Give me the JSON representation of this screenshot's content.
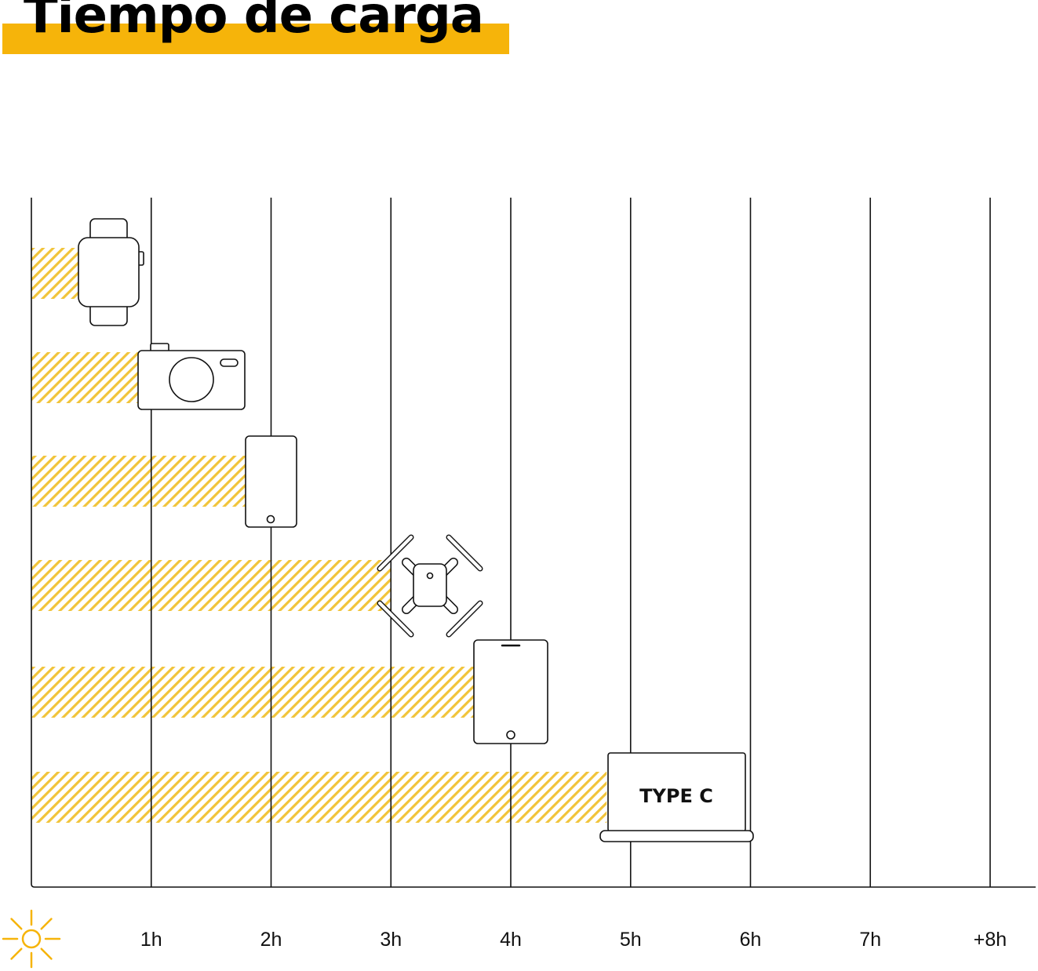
{
  "title": "Tiempo de carga",
  "colors": {
    "accent": "#F6B40A",
    "hatch": "#F1C43A",
    "line": "#111111"
  },
  "chart_data": {
    "type": "bar",
    "orientation": "horizontal",
    "categories": [
      "smartwatch",
      "camera",
      "smartphone",
      "drone",
      "tablet",
      "laptop"
    ],
    "category_icons": [
      "smartwatch-icon",
      "camera-icon",
      "smartphone-icon",
      "drone-icon",
      "tablet-icon",
      "laptop-icon"
    ],
    "values": [
      0.4,
      0.9,
      1.8,
      3.0,
      3.7,
      4.8
    ],
    "value_unit": "hours",
    "x_ticks": [
      "1h",
      "2h",
      "3h",
      "4h",
      "5h",
      "6h",
      "7h",
      "+8h"
    ],
    "xlim": [
      0,
      8
    ],
    "xaxis_icon": "sun-icon",
    "laptop_label": "TYPE C",
    "grid": true
  }
}
